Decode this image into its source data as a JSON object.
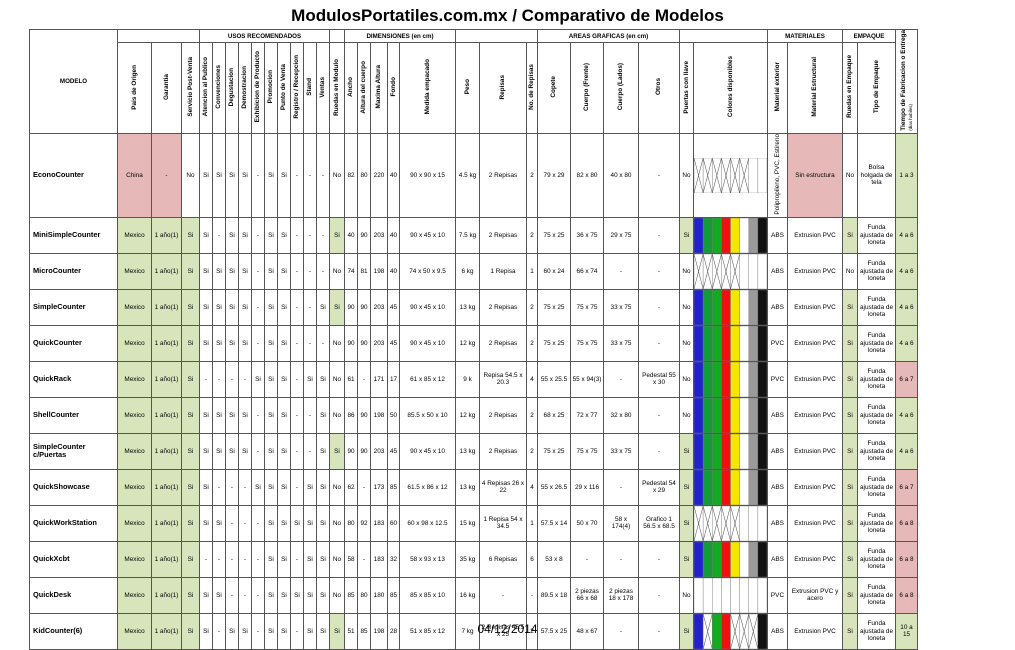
{
  "title": "ModulosPortatiles.com.mx / Comparativo de Modelos",
  "footer_date": "04/12/2014",
  "colors": {
    "green": "#d8e4bc",
    "pink": "#e6b9b8"
  },
  "groups": {
    "usos": "USOS RECOMENDADOS",
    "dimensiones": "DIMENSIONES (en cm)",
    "areas": "AREAS GRAFICAS (en cm)",
    "materiales": "MATERIALES",
    "empaque": "EMPAQUE"
  },
  "headers": {
    "modelo": "MODELO",
    "pais": "Pais de Origen",
    "garantia": "Garantia",
    "servicio": "Servicio Post-Venta",
    "usos": [
      "Atencion al Publico",
      "Convenciones",
      "Degustacion",
      "Demostracion",
      "Exhibicion de Producto",
      "Promocion",
      "Punto de Venta",
      "Registro / Recepcion",
      "Stand",
      "Ventas"
    ],
    "ruedas_modulo": "Ruedas en Modulo",
    "dims": [
      "Ancho",
      "Altura del cuerpo",
      "Maxima Altura",
      "Fondo",
      "Medida empacado"
    ],
    "peso": "Peso",
    "repisas": "Repisas",
    "no_repisas": "No. de Repisas",
    "areas": [
      "Copete",
      "Cuerpo (Frente)",
      "Cuerpo (Lados)",
      "Otros"
    ],
    "puertas": "Puertas con llave",
    "colores": "Colores disponibles",
    "mat_ext": "Material exterior",
    "mat_est": "Material Estructural",
    "ruedas_emp": "Ruedas en Empaque",
    "tipo_emp": "Tipo de Empaque",
    "tiempo": "Tiempo de Fabricacion o Entrega",
    "tiempo_note": "(dias habiles)"
  },
  "rows": [
    {
      "name": "EconoCounter",
      "pais": "China",
      "garantia": "-",
      "servicio": "No",
      "usos": [
        "Si",
        "Si",
        "Si",
        "Si",
        "-",
        "Si",
        "Si",
        "-",
        "-",
        "-"
      ],
      "ruedas": "No",
      "dims": [
        "82",
        "80",
        "220",
        "40",
        "90 x 90 x 15"
      ],
      "peso": "4.5 kg",
      "repisas": "2 Repisas",
      "nrep": "2",
      "areas": [
        "79 x 29",
        "82 x 80",
        "40 x 80",
        "-"
      ],
      "puertas": "No",
      "colores": "x5",
      "mat_ext": "Polipropileno, PVC, Estireno",
      "mat_est": "Sin estructura",
      "ruedas_emp": "No",
      "tipo_emp": "Bolsa holgada de tela",
      "tiempo": "1 a 3"
    },
    {
      "name": "MiniSimpleCounter",
      "pais": "Mexico",
      "garantia": "1 año(1)",
      "servicio": "Si",
      "usos": [
        "Si",
        "-",
        "Si",
        "Si",
        "-",
        "Si",
        "Si",
        "-",
        "-",
        "-"
      ],
      "ruedas": "Si",
      "dims": [
        "40",
        "90",
        "203",
        "40",
        "90 x 45 x 10"
      ],
      "peso": "7.5 kg",
      "repisas": "2 Repisas",
      "nrep": "2",
      "areas": [
        "75 x 25",
        "36 x 75",
        "29 x 75",
        "-"
      ],
      "puertas": "Si",
      "colores": "full",
      "mat_ext": "ABS",
      "mat_est": "Extrusion PVC",
      "ruedas_emp": "Si",
      "tipo_emp": "Funda ajustada de loneta",
      "tiempo": "4 a 6"
    },
    {
      "name": "MicroCounter",
      "pais": "Mexico",
      "garantia": "1 año(1)",
      "servicio": "Si",
      "usos": [
        "Si",
        "Si",
        "Si",
        "Si",
        "-",
        "Si",
        "Si",
        "-",
        "-",
        "-"
      ],
      "ruedas": "No",
      "dims": [
        "74",
        "81",
        "198",
        "40",
        "74 x 50 x 9.5"
      ],
      "peso": "6 kg",
      "repisas": "1 Repisa",
      "nrep": "1",
      "areas": [
        "60 x 24",
        "66 x 74",
        "-",
        "-"
      ],
      "puertas": "No",
      "colores": "micro",
      "mat_ext": "ABS",
      "mat_est": "Extrusion PVC",
      "ruedas_emp": "No",
      "tipo_emp": "Funda ajustada de loneta",
      "tiempo": "4 a 6"
    },
    {
      "name": "SimpleCounter",
      "pais": "Mexico",
      "garantia": "1 año(1)",
      "servicio": "Si",
      "usos": [
        "Si",
        "Si",
        "Si",
        "Si",
        "-",
        "Si",
        "Si",
        "-",
        "-",
        "Si"
      ],
      "ruedas": "Si",
      "dims": [
        "90",
        "90",
        "203",
        "45",
        "90 x 45 x 10"
      ],
      "peso": "13 kg",
      "repisas": "2 Repisas",
      "nrep": "2",
      "areas": [
        "75 x 25",
        "75 x 75",
        "33 x 75",
        "-"
      ],
      "puertas": "No",
      "colores": "full",
      "mat_ext": "ABS",
      "mat_est": "Extrusion PVC",
      "ruedas_emp": "Si",
      "tipo_emp": "Funda ajustada de loneta",
      "tiempo": "4 a 6"
    },
    {
      "name": "QuickCounter",
      "pais": "Mexico",
      "garantia": "1 año(1)",
      "servicio": "Si",
      "usos": [
        "Si",
        "Si",
        "Si",
        "Si",
        "-",
        "Si",
        "Si",
        "-",
        "-",
        "-"
      ],
      "ruedas": "No",
      "dims": [
        "90",
        "90",
        "203",
        "45",
        "90 x 45 x 10"
      ],
      "peso": "12 kg",
      "repisas": "2 Repisas",
      "nrep": "2",
      "areas": [
        "75 x 25",
        "75 x 75",
        "33 x 75",
        "-"
      ],
      "puertas": "No",
      "colores": "full",
      "mat_ext": "PVC",
      "mat_est": "Extrusion PVC",
      "ruedas_emp": "Si",
      "tipo_emp": "Funda ajustada de loneta",
      "tiempo": "4 a 6"
    },
    {
      "name": "QuickRack",
      "pais": "Mexico",
      "garantia": "1 año(1)",
      "servicio": "Si",
      "usos": [
        "-",
        "-",
        "-",
        "-",
        "Si",
        "Si",
        "Si",
        "-",
        "Si",
        "Si"
      ],
      "ruedas": "No",
      "dims": [
        "61",
        "-",
        "171",
        "17",
        "61 x 85 x 12"
      ],
      "peso": "9 k",
      "repisas": "Repisa 54.5 x 20.3",
      "nrep": "4",
      "areas": [
        "55 x 25.5",
        "55 x 94(3)",
        "-",
        "Pedestal 55 x 30"
      ],
      "puertas": "No",
      "colores": "full",
      "mat_ext": "PVC",
      "mat_est": "Extrusion PVC",
      "ruedas_emp": "Si",
      "tipo_emp": "Funda ajustada de loneta",
      "tiempo": "6 a 7"
    },
    {
      "name": "ShellCounter",
      "pais": "Mexico",
      "garantia": "1 año(1)",
      "servicio": "Si",
      "usos": [
        "Si",
        "Si",
        "Si",
        "Si",
        "-",
        "Si",
        "Si",
        "-",
        "-",
        "Si"
      ],
      "ruedas": "No",
      "dims": [
        "86",
        "90",
        "198",
        "50",
        "85.5 x 50 x 10"
      ],
      "peso": "12 kg",
      "repisas": "2 Repisas",
      "nrep": "2",
      "areas": [
        "68 x 25",
        "72 x 77",
        "32 x 80",
        "-"
      ],
      "puertas": "No",
      "colores": "full",
      "mat_ext": "ABS",
      "mat_est": "Extrusion PVC",
      "ruedas_emp": "Si",
      "tipo_emp": "Funda ajustada de loneta",
      "tiempo": "4 a 6"
    },
    {
      "name": "SimpleCounter c/Puertas",
      "pais": "Mexico",
      "garantia": "1 año(1)",
      "servicio": "Si",
      "usos": [
        "Si",
        "Si",
        "Si",
        "Si",
        "-",
        "Si",
        "Si",
        "-",
        "-",
        "Si"
      ],
      "ruedas": "Si",
      "dims": [
        "90",
        "90",
        "203",
        "45",
        "90 x 45 x 10"
      ],
      "peso": "13 kg",
      "repisas": "2 Repisas",
      "nrep": "2",
      "areas": [
        "75 x 25",
        "75 x 75",
        "33 x 75",
        "-"
      ],
      "puertas": "Si",
      "colores": "full",
      "mat_ext": "ABS",
      "mat_est": "Extrusion PVC",
      "ruedas_emp": "Si",
      "tipo_emp": "Funda ajustada de loneta",
      "tiempo": "4 a 6"
    },
    {
      "name": "QuickShowcase",
      "pais": "Mexico",
      "garantia": "1 año(1)",
      "servicio": "Si",
      "usos": [
        "Si",
        "-",
        "-",
        "-",
        "Si",
        "Si",
        "Si",
        "-",
        "Si",
        "Si"
      ],
      "ruedas": "No",
      "dims": [
        "62",
        "-",
        "173",
        "85",
        "61.5 x 86 x 12"
      ],
      "peso": "13 kg",
      "repisas": "4 Repisas 26 x 22",
      "nrep": "4",
      "areas": [
        "55 x 26.5",
        "29 x 116",
        "-",
        "Pedestal 54 x 29"
      ],
      "puertas": "Si",
      "colores": "full",
      "mat_ext": "ABS",
      "mat_est": "Extrusion PVC",
      "ruedas_emp": "Si",
      "tipo_emp": "Funda ajustada de loneta",
      "tiempo": "6 a 7"
    },
    {
      "name": "QuickWorkStation",
      "pais": "Mexico",
      "garantia": "1 año(1)",
      "servicio": "Si",
      "usos": [
        "Si",
        "Si",
        "-",
        "-",
        "-",
        "Si",
        "Si",
        "Si",
        "Si",
        "Si"
      ],
      "ruedas": "No",
      "dims": [
        "80",
        "92",
        "183",
        "60",
        "60 x 98 x 12.5"
      ],
      "peso": "15 kg",
      "repisas": "1 Repisa 54 x 34.5",
      "nrep": "1",
      "areas": [
        "57.5 x 14",
        "50 x 70",
        "58 x 174(4)",
        "Grafico 1 56.5 x 68.5"
      ],
      "puertas": "Si",
      "colores": "micro",
      "mat_ext": "ABS",
      "mat_est": "Extrusion PVC",
      "ruedas_emp": "Si",
      "tipo_emp": "Funda ajustada de loneta",
      "tiempo": "6 a 8"
    },
    {
      "name": "QuickXcbt",
      "pais": "Mexico",
      "garantia": "1 año(1)",
      "servicio": "Si",
      "usos": [
        "-",
        "-",
        "-",
        "-",
        "-",
        "Si",
        "Si",
        "-",
        "Si",
        "Si"
      ],
      "ruedas": "No",
      "dims": [
        "58",
        "-",
        "183",
        "32",
        "58 x 93 x 13"
      ],
      "peso": "35 kg",
      "repisas": "6 Repisas",
      "nrep": "6",
      "areas": [
        "53 x 8",
        "-",
        "-",
        "-"
      ],
      "puertas": "Si",
      "colores": "full",
      "mat_ext": "ABS",
      "mat_est": "Extrusion PVC",
      "ruedas_emp": "Si",
      "tipo_emp": "Funda ajustada de loneta",
      "tiempo": "6 a 8"
    },
    {
      "name": "QuickDesk",
      "pais": "Mexico",
      "garantia": "1 año(1)",
      "servicio": "Si",
      "usos": [
        "Si",
        "Si",
        "-",
        "-",
        "-",
        "Si",
        "Si",
        "Si",
        "Si",
        "Si"
      ],
      "ruedas": "No",
      "dims": [
        "85",
        "80",
        "180",
        "85",
        "85 x 85 x 10"
      ],
      "peso": "16 kg",
      "repisas": "-",
      "nrep": "-",
      "areas": [
        "89.5 x 18",
        "2 piezas 66 x 68",
        "2 piezas 18 x 178",
        "-"
      ],
      "puertas": "No",
      "colores": "desk",
      "mat_ext": "PVC",
      "mat_est": "Extrusion PVC y acero",
      "ruedas_emp": "Si",
      "tipo_emp": "Funda ajustada de loneta",
      "tiempo": "6 a 8"
    },
    {
      "name": "KidCounter(6)",
      "pais": "Mexico",
      "garantia": "1 año(1)",
      "servicio": "Si",
      "usos": [
        "Si",
        "-",
        "Si",
        "Si",
        "-",
        "Si",
        "Si",
        "-",
        "Si",
        "Si"
      ],
      "ruedas": "Si",
      "dims": [
        "51",
        "85",
        "198",
        "28",
        "51 x 85 x 12"
      ],
      "peso": "7 kg",
      "repisas": "2 Repisas 45.5 x 25",
      "nrep": "2",
      "areas": [
        "57.5 x 25",
        "48 x 67",
        "-",
        "-"
      ],
      "puertas": "Si",
      "colores": "kid",
      "mat_ext": "ABS",
      "mat_est": "Extrusion PVC",
      "ruedas_emp": "Si",
      "tipo_emp": "Funda ajustada de loneta",
      "tiempo": "10 a 15"
    }
  ]
}
